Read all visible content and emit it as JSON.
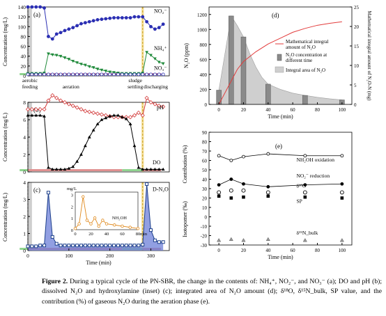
{
  "caption": {
    "label": "Figure 2.",
    "text": "During a typical cycle of the PN-SBR, the change in the contents of: NH₄⁺, NO₂⁻, and NO₃⁻ (a); DO and pH (b); dissolved N₂O and hydroxylamine (inset) (c); integrated area of N₂O amount (d); δ¹⁸O, δ¹⁵N_bulk, SP value, and the contribution (%) of gaseous N₂O during the aeration phase (e)."
  },
  "panel_a": {
    "tag": "(a)",
    "ylabel": "Concentration (mg/L)",
    "yticks": [
      "0",
      "20",
      "40",
      "60",
      "80",
      "100",
      "120",
      "140"
    ],
    "series_labels": {
      "no2": "NO₂⁻",
      "nh4": "NH₄⁺",
      "no3": "NO₃⁻"
    },
    "phases": [
      "aerobic feeding",
      "aeration",
      "sludge settling",
      "discharging"
    ]
  },
  "panel_b": {
    "tag": "(b)",
    "ylabel": "Concentration (mg/L)",
    "yticks": [
      "0",
      "2",
      "4",
      "6",
      "8"
    ],
    "series_labels": {
      "ph": "pH",
      "do": "DO"
    }
  },
  "panel_c": {
    "tag": "(c)",
    "ylabel": "Concentration (mg/L)",
    "yticks": [
      "0",
      "1",
      "2",
      "3",
      "4"
    ],
    "xticks": [
      "0",
      "100",
      "200",
      "300"
    ],
    "xlabel": "Time (min)",
    "series_label": "D-N₂O",
    "inset": {
      "unit": "mg/L",
      "yticks": [
        "0",
        "1",
        "2",
        "3"
      ],
      "xticks": [
        "0",
        "20",
        "40",
        "60",
        "80"
      ],
      "xunit": "min",
      "label": "NH₂OH"
    }
  },
  "panel_d": {
    "tag": "(d)",
    "ylabel": "N₂O (ppm)",
    "y2label": "Mathematical integral amount of N₂O-N (mg)",
    "yticks": [
      "0",
      "200",
      "400",
      "600",
      "800",
      "1000",
      "1200"
    ],
    "y2ticks": [
      "0",
      "5",
      "10",
      "15",
      "20",
      "25"
    ],
    "xticks": [
      "0",
      "20",
      "40",
      "60",
      "80",
      "100"
    ],
    "xlabel": "Time (min)",
    "legend": [
      "Mathematical integral amount of N₂O",
      "N₂O concentration at different time",
      "Integral area of N₂O"
    ]
  },
  "panel_e": {
    "tag": "(e)",
    "ylabel_top": "Contribution (%)",
    "ylabel_bottom": "Isotopomer (‰)",
    "yticks": [
      "90",
      "80",
      "70",
      "60",
      "50",
      "40",
      "30",
      "20",
      "10",
      "0",
      "-10",
      "-20",
      "-30"
    ],
    "xticks": [
      "0",
      "20",
      "40",
      "60",
      "80",
      "100"
    ],
    "xlabel": "Time (min)",
    "labels": {
      "nh2oh": "NH₂OH oxidation",
      "no2r": "NO₂⁻ reduction",
      "d18o": "δ¹⁸O",
      "sp": "SP",
      "d15n": "δ¹⁵N_bulk"
    }
  },
  "chart_data": [
    {
      "type": "line",
      "panel": "a",
      "x": [
        0,
        10,
        20,
        30,
        40,
        50,
        60,
        70,
        80,
        90,
        100,
        110,
        120,
        130,
        140,
        150,
        160,
        170,
        180,
        190,
        200,
        210,
        220,
        230,
        240,
        250,
        260,
        270,
        280,
        290,
        300,
        310,
        320,
        330
      ],
      "series": [
        {
          "name": "NO₂⁻",
          "values": [
            140,
            140,
            140,
            140,
            138,
            80,
            75,
            85,
            88,
            92,
            95,
            98,
            102,
            106,
            108,
            110,
            112,
            114,
            115,
            116,
            117,
            118,
            118,
            118,
            118,
            118,
            120,
            120,
            120,
            110,
            100,
            95,
            98,
            105
          ]
        },
        {
          "name": "NH₄⁺",
          "values": [
            5,
            5,
            5,
            5,
            6,
            45,
            43,
            42,
            40,
            37,
            34,
            30,
            27,
            24,
            22,
            19,
            17,
            14,
            12,
            10,
            8,
            7,
            6,
            5,
            5,
            5,
            5,
            5,
            6,
            48,
            42,
            35,
            28,
            25
          ]
        },
        {
          "name": "NO₃⁻",
          "values": [
            3,
            3,
            3,
            3,
            3,
            3,
            3,
            3,
            3,
            3,
            3,
            3,
            3,
            3,
            3,
            3,
            3,
            3,
            3,
            3,
            3,
            3,
            3,
            3,
            3,
            3,
            3,
            3,
            3,
            3,
            3,
            3,
            3,
            3
          ]
        }
      ]
    },
    {
      "type": "line",
      "panel": "b",
      "x": [
        0,
        10,
        20,
        30,
        40,
        50,
        60,
        70,
        80,
        90,
        100,
        110,
        120,
        130,
        140,
        150,
        160,
        170,
        180,
        190,
        200,
        210,
        220,
        230,
        240,
        250,
        260,
        270,
        280,
        290,
        300,
        310,
        320,
        330
      ],
      "series": [
        {
          "name": "pH",
          "values": [
            7.2,
            7.2,
            7.2,
            7.2,
            7.2,
            8.2,
            8.8,
            8.5,
            8.2,
            8.0,
            7.8,
            7.6,
            7.4,
            7.2,
            7.0,
            6.9,
            6.8,
            6.7,
            6.6,
            6.5,
            6.4,
            6.3,
            6.3,
            6.3,
            6.3,
            6.3,
            6.5,
            6.8,
            6.5,
            8.5,
            8.0,
            7.8,
            7.6,
            7.5
          ]
        },
        {
          "name": "DO",
          "values": [
            6.5,
            6.5,
            6.5,
            6.5,
            6.4,
            0.5,
            0.3,
            0.3,
            0.3,
            0.3,
            0.4,
            0.6,
            1.2,
            2.0,
            3.0,
            4.0,
            4.8,
            5.5,
            6.0,
            6.2,
            6.4,
            6.5,
            6.5,
            6.3,
            6.1,
            5.5,
            3.0,
            0.5,
            0.3,
            0.3,
            0.3,
            0.3,
            0.3,
            0.3
          ]
        }
      ]
    },
    {
      "type": "line",
      "panel": "c",
      "x": [
        0,
        10,
        20,
        30,
        40,
        50,
        60,
        70,
        80,
        90,
        100,
        110,
        120,
        130,
        140,
        150,
        160,
        170,
        180,
        190,
        200,
        210,
        220,
        230,
        240,
        250,
        260,
        270,
        280,
        290,
        300,
        310,
        320,
        330
      ],
      "series": [
        {
          "name": "D-N₂O",
          "values": [
            0.25,
            0.25,
            0.25,
            0.3,
            0.3,
            3.4,
            0.8,
            0.4,
            0.3,
            0.3,
            0.3,
            0.3,
            0.3,
            0.3,
            0.3,
            0.3,
            0.3,
            0.3,
            0.3,
            0.3,
            0.3,
            0.3,
            0.3,
            0.3,
            0.3,
            0.3,
            0.3,
            0.3,
            0.35,
            3.9,
            1.2,
            0.6,
            0.5,
            0.5
          ]
        }
      ]
    },
    {
      "type": "line",
      "panel": "c-inset",
      "x": [
        0,
        5,
        10,
        15,
        20,
        25,
        30,
        35,
        40,
        50,
        60,
        70,
        80
      ],
      "series": [
        {
          "name": "NH₂OH",
          "values": [
            0.1,
            0.5,
            2.8,
            0.8,
            0.5,
            1.0,
            0.3,
            0.8,
            0.5,
            0.4,
            0.3,
            0.2,
            0.1
          ]
        }
      ]
    },
    {
      "type": "bar",
      "panel": "d",
      "x": [
        0,
        10,
        20,
        40,
        70,
        100
      ],
      "series": [
        {
          "name": "N₂O concentration at different time",
          "values": [
            190,
            1180,
            900,
            270,
            120,
            60
          ]
        },
        {
          "name": "Mathematical integral amount of N₂O",
          "x": [
            0,
            5,
            10,
            15,
            20,
            30,
            40,
            50,
            60,
            70,
            80,
            90,
            100
          ],
          "values": [
            0,
            3,
            6,
            9,
            11,
            13.5,
            15.5,
            17,
            18.5,
            19.5,
            20.3,
            20.8,
            21.2
          ]
        }
      ],
      "ylim": [
        0,
        1200
      ],
      "y2lim": [
        0,
        25
      ]
    },
    {
      "type": "scatter",
      "panel": "e",
      "x": [
        0,
        10,
        20,
        40,
        70,
        100
      ],
      "series": [
        {
          "name": "NH₂OH oxidation",
          "values": [
            65,
            60,
            64,
            67,
            65,
            65
          ]
        },
        {
          "name": "NO₂⁻ reduction",
          "values": [
            34,
            40,
            35,
            32,
            34,
            35
          ]
        },
        {
          "name": "δ¹⁸O",
          "values": [
            26,
            28,
            28,
            26,
            26,
            26
          ]
        },
        {
          "name": "SP",
          "values": [
            22,
            20,
            21,
            22,
            21,
            20
          ]
        },
        {
          "name": "δ¹⁵N_bulk",
          "values": [
            -25,
            -24,
            -25,
            -24,
            -25,
            -25
          ]
        }
      ],
      "ylim": [
        -30,
        90
      ]
    }
  ]
}
